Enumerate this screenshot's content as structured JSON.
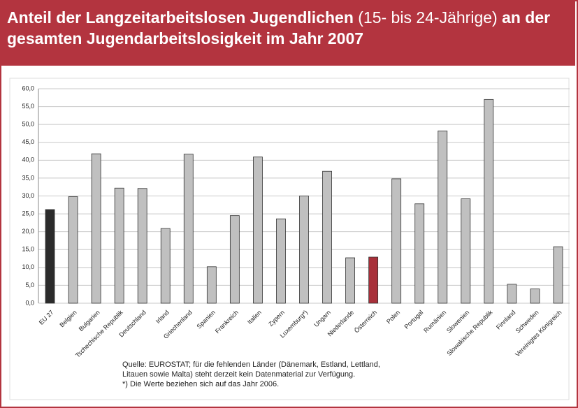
{
  "chart_data": {
    "type": "bar",
    "title_parts": [
      "Anteil der Langzeitarbeitslosen Jugendlichen",
      "(15- bis 24-Jährige)",
      "an der gesamten Jugendarbeitslosigkeit im Jahr 2007"
    ],
    "categories": [
      "EU 27",
      "Belgien",
      "Bulgarien",
      "Tschechische Republik",
      "Deutschland",
      "Irland",
      "Griechenland",
      "Spanien",
      "Frankreich",
      "Italien",
      "Zypern",
      "Luxemburg*)",
      "Ungarn",
      "Niederlande",
      "Österreich",
      "Polen",
      "Portugal",
      "Rumänien",
      "Slowenien",
      "Slowakische Republik",
      "Finnland",
      "Schweden",
      "Vereinigtes Königreich"
    ],
    "values": [
      26.2,
      29.8,
      41.8,
      32.2,
      32.1,
      20.9,
      41.7,
      10.2,
      24.5,
      40.9,
      23.6,
      30.0,
      36.9,
      12.7,
      12.9,
      34.8,
      27.8,
      48.2,
      29.2,
      57.0,
      5.3,
      4.0,
      15.8
    ],
    "colors": [
      "#2b2b2b",
      "#c0c0c0",
      "#c0c0c0",
      "#c0c0c0",
      "#c0c0c0",
      "#c0c0c0",
      "#c0c0c0",
      "#c0c0c0",
      "#c0c0c0",
      "#c0c0c0",
      "#c0c0c0",
      "#c0c0c0",
      "#c0c0c0",
      "#c0c0c0",
      "#a8303a",
      "#c0c0c0",
      "#c0c0c0",
      "#c0c0c0",
      "#c0c0c0",
      "#c0c0c0",
      "#c0c0c0",
      "#c0c0c0",
      "#c0c0c0"
    ],
    "ylim": [
      0,
      60
    ],
    "yticks": [
      {
        "value": 0,
        "label": "0,0"
      },
      {
        "value": 5,
        "label": "5,0"
      },
      {
        "value": 10,
        "label": "10,0"
      },
      {
        "value": 15,
        "label": "15,0"
      },
      {
        "value": 20,
        "label": "20,0"
      },
      {
        "value": 25,
        "label": "25,0"
      },
      {
        "value": 30,
        "label": "30,0"
      },
      {
        "value": 35,
        "label": "35,0"
      },
      {
        "value": 40,
        "label": "40,0"
      },
      {
        "value": 45,
        "label": "45,0"
      },
      {
        "value": 50,
        "label": "50,0"
      },
      {
        "value": 55,
        "label": "55,0"
      },
      {
        "value": 60,
        "label": "60,0"
      }
    ],
    "grid": true,
    "notes": [
      "Quelle: EUROSTAT; für die fehlenden Länder (Dänemark, Estland, Lettland,",
      "Litauen sowie Malta) steht derzeit kein Datenmaterial zur Verfügung.",
      "*) Die Werte beziehen sich auf das Jahr 2006."
    ]
  }
}
